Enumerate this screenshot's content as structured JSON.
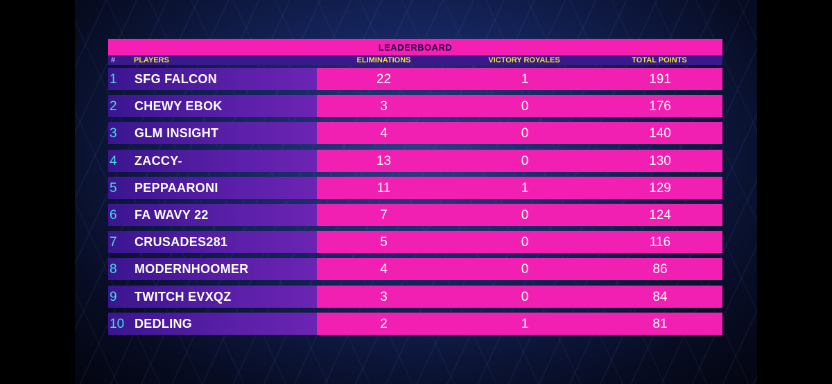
{
  "leaderboard": {
    "title": "LEADERBOARD",
    "headers": {
      "rank": "#",
      "players": "PLAYERS",
      "eliminations": "ELIMINATIONS",
      "victory_royales": "VICTORY ROYALES",
      "total_points": "TOTAL POINTS"
    },
    "rows": [
      {
        "rank": "1",
        "player": "SFG FALCON",
        "eliminations": "22",
        "victory_royales": "1",
        "total_points": "191"
      },
      {
        "rank": "2",
        "player": "CHEWY EBOK",
        "eliminations": "3",
        "victory_royales": "0",
        "total_points": "176"
      },
      {
        "rank": "3",
        "player": "GLM INSIGHT",
        "eliminations": "4",
        "victory_royales": "0",
        "total_points": "140"
      },
      {
        "rank": "4",
        "player": "ZACCY-",
        "eliminations": "13",
        "victory_royales": "0",
        "total_points": "130"
      },
      {
        "rank": "5",
        "player": "PEPPAARONI",
        "eliminations": "11",
        "victory_royales": "1",
        "total_points": "129"
      },
      {
        "rank": "6",
        "player": "FA WAVY 22",
        "eliminations": "7",
        "victory_royales": "0",
        "total_points": "124"
      },
      {
        "rank": "7",
        "player": "CRUSADES281",
        "eliminations": "5",
        "victory_royales": "0",
        "total_points": "116"
      },
      {
        "rank": "8",
        "player": "MODERNHOOMER",
        "eliminations": "4",
        "victory_royales": "0",
        "total_points": "86"
      },
      {
        "rank": "9",
        "player": "TWITCH EVXQZ",
        "eliminations": "3",
        "victory_royales": "0",
        "total_points": "84"
      },
      {
        "rank": "10",
        "player": "DEDLING",
        "eliminations": "2",
        "victory_royales": "1",
        "total_points": "81"
      }
    ]
  }
}
